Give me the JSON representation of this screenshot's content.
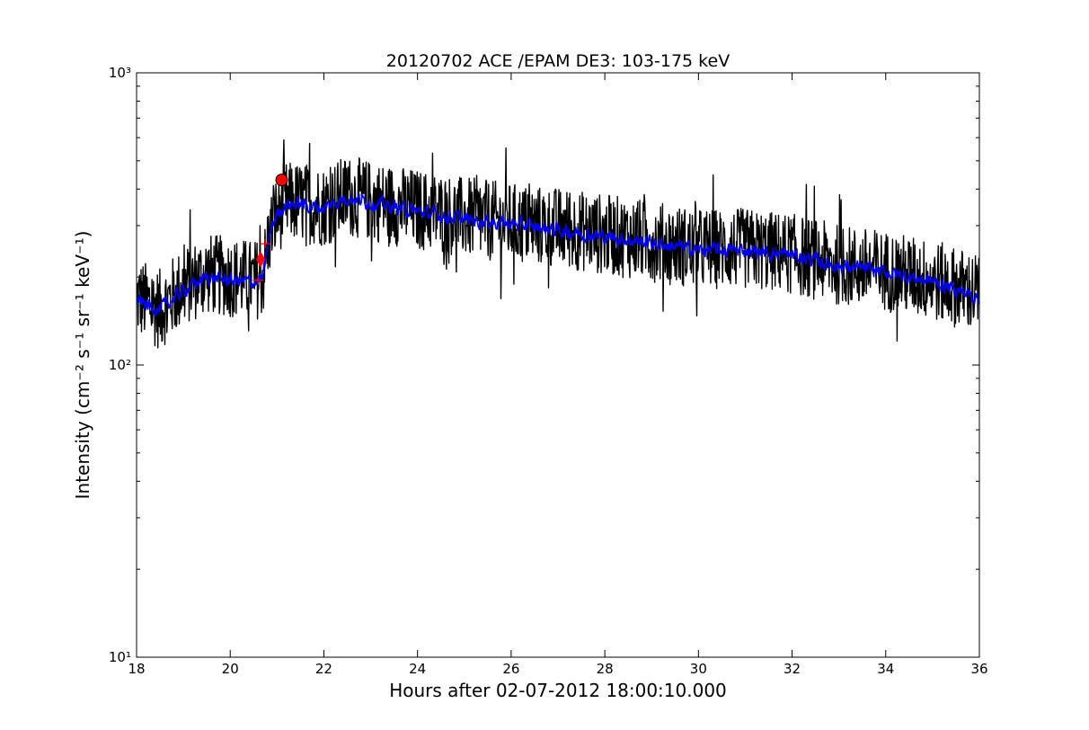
{
  "chart_data": {
    "type": "line",
    "title": "20120702 ACE /EPAM DE3: 103-175 keV",
    "xlabel": "Hours after 02-07-2012 18:00:10.000",
    "ylabel": "Intensity (cm⁻² s⁻¹ sr⁻¹ keV⁻¹)",
    "xlim": [
      18,
      36
    ],
    "ylim": [
      10,
      1000
    ],
    "yscale": "log",
    "grid": false,
    "xticks": [
      18,
      20,
      22,
      24,
      26,
      28,
      30,
      32,
      34,
      36
    ],
    "xtick_labels": [
      "18",
      "20",
      "22",
      "24",
      "26",
      "28",
      "30",
      "32",
      "34",
      "36"
    ],
    "yticks": [
      10,
      100,
      1000
    ],
    "ytick_labels": [
      "10¹",
      "10²",
      "10³"
    ],
    "colors": {
      "raw": "#000000",
      "smoothed": "#0000ff",
      "markers": "#ff0000"
    },
    "series": [
      {
        "style": "raw",
        "x": [
          18.0,
          18.5,
          19.0,
          19.5,
          20.0,
          20.5,
          20.7,
          20.8,
          20.9,
          21.0,
          21.2,
          21.5,
          22.0,
          22.5,
          23.0,
          24.0,
          25.0,
          26.0,
          27.0,
          28.0,
          29.0,
          30.0,
          31.0,
          32.0,
          33.0,
          34.0,
          35.0,
          36.0
        ],
        "values": [
          170,
          155,
          185,
          205,
          200,
          195,
          200,
          260,
          300,
          330,
          360,
          360,
          350,
          380,
          365,
          340,
          320,
          305,
          295,
          280,
          265,
          250,
          250,
          240,
          220,
          210,
          195,
          175
        ]
      },
      {
        "style": "smoothed",
        "x": [
          18.0,
          18.5,
          19.0,
          19.5,
          20.0,
          20.5,
          20.7,
          20.8,
          20.9,
          21.0,
          21.2,
          21.5,
          22.0,
          22.5,
          23.0,
          24.0,
          25.0,
          26.0,
          27.0,
          28.0,
          29.0,
          30.0,
          31.0,
          32.0,
          33.0,
          34.0,
          35.0,
          36.0
        ],
        "values": [
          165,
          155,
          180,
          200,
          195,
          192,
          198,
          255,
          300,
          330,
          355,
          355,
          345,
          375,
          360,
          335,
          315,
          305,
          290,
          275,
          262,
          248,
          247,
          238,
          218,
          208,
          193,
          170
        ]
      }
    ],
    "markers": [
      {
        "shape": "circle",
        "x": 21.1,
        "value": 430
      },
      {
        "shape": "diamond",
        "x": 20.65,
        "value": 230
      },
      {
        "shape": "plus",
        "x": 20.75,
        "value": 260
      },
      {
        "shape": "plus",
        "x": 20.6,
        "value": 195
      }
    ]
  }
}
